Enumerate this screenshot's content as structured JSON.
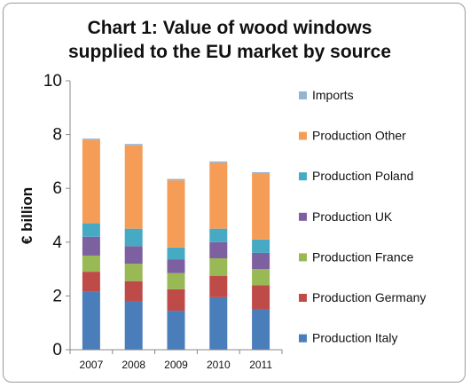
{
  "chart_data": {
    "type": "bar",
    "stacked": true,
    "title_lines": [
      "Chart 1: Value of wood windows",
      "supplied to the EU market by source"
    ],
    "xlabel": "",
    "ylabel": "€ billion",
    "ylim": [
      0,
      10
    ],
    "yticks": [
      "0",
      "2",
      "4",
      "6",
      "8",
      "10"
    ],
    "grid": false,
    "legend_position": "right",
    "categories": [
      "2007",
      "2008",
      "2009",
      "2010",
      "2011"
    ],
    "series": [
      {
        "name": "Production Italy",
        "color": "#4a7ebb",
        "values": [
          2.15,
          1.8,
          1.45,
          1.95,
          1.5
        ]
      },
      {
        "name": "Production Germany",
        "color": "#be4b48",
        "values": [
          0.75,
          0.75,
          0.8,
          0.8,
          0.9
        ]
      },
      {
        "name": "Production France",
        "color": "#98b954",
        "values": [
          0.6,
          0.65,
          0.6,
          0.65,
          0.6
        ]
      },
      {
        "name": "Production UK",
        "color": "#7d60a0",
        "values": [
          0.7,
          0.65,
          0.5,
          0.6,
          0.6
        ]
      },
      {
        "name": "Production Poland",
        "color": "#46aac5",
        "values": [
          0.5,
          0.65,
          0.45,
          0.5,
          0.5
        ]
      },
      {
        "name": "Production Other",
        "color": "#f59d56",
        "values": [
          3.1,
          3.1,
          2.5,
          2.45,
          2.45
        ]
      },
      {
        "name": "Imports",
        "color": "#95b3d7",
        "values": [
          0.05,
          0.05,
          0.05,
          0.05,
          0.05
        ]
      }
    ]
  }
}
